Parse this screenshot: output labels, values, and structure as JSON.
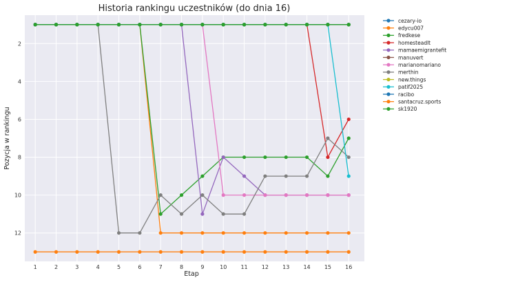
{
  "chart_data": {
    "type": "line",
    "title": "Historia rankingu uczestników (do dnia 16)",
    "xlabel": "Etap",
    "ylabel": "Pozycja w rankingu",
    "x": [
      1,
      2,
      3,
      4,
      5,
      6,
      7,
      8,
      9,
      10,
      11,
      12,
      13,
      14,
      15,
      16
    ],
    "xlim": [
      0.5,
      16.75
    ],
    "ylim": [
      13.5,
      0.5
    ],
    "y_inverted": true,
    "yticks": [
      2,
      4,
      6,
      8,
      10,
      12
    ],
    "grid": true,
    "legend_position": "outside-top-right",
    "series": [
      {
        "name": "cezary-io",
        "color": "#1f77b4",
        "values": [
          1,
          1,
          1,
          1,
          1,
          1,
          1,
          1,
          1,
          1,
          1,
          1,
          1,
          1,
          1,
          1
        ]
      },
      {
        "name": "edycu007",
        "color": "#ff7f0e",
        "values": [
          1,
          1,
          1,
          1,
          1,
          1,
          12,
          12,
          12,
          12,
          12,
          12,
          12,
          12,
          12,
          12
        ]
      },
      {
        "name": "fredkese",
        "color": "#2ca02c",
        "values": [
          1,
          1,
          1,
          1,
          1,
          1,
          11,
          10,
          9,
          8,
          8,
          8,
          8,
          8,
          9,
          7
        ]
      },
      {
        "name": "homesteadlt",
        "color": "#d62728",
        "values": [
          1,
          1,
          1,
          1,
          1,
          1,
          1,
          1,
          1,
          1,
          1,
          1,
          1,
          1,
          8,
          6
        ]
      },
      {
        "name": "mamaemigrantefit",
        "color": "#9467bd",
        "values": [
          1,
          1,
          1,
          1,
          1,
          1,
          1,
          1,
          11,
          8,
          9,
          10,
          10,
          10,
          10,
          10
        ]
      },
      {
        "name": "manuvert",
        "color": "#8c564b",
        "values": [
          1,
          1,
          1,
          1,
          1,
          1,
          1,
          1,
          1,
          1,
          1,
          1,
          1,
          1,
          1,
          1
        ]
      },
      {
        "name": "marianomariano",
        "color": "#e377c2",
        "values": [
          1,
          1,
          1,
          1,
          1,
          1,
          1,
          1,
          1,
          10,
          10,
          10,
          10,
          10,
          10,
          10
        ]
      },
      {
        "name": "merthin",
        "color": "#7f7f7f",
        "values": [
          1,
          1,
          1,
          1,
          12,
          12,
          10,
          11,
          10,
          11,
          11,
          9,
          9,
          9,
          7,
          8
        ]
      },
      {
        "name": "new.things",
        "color": "#bcbd22",
        "values": [
          1,
          1,
          1,
          1,
          1,
          1,
          1,
          1,
          1,
          1,
          1,
          1,
          1,
          1,
          1,
          1
        ]
      },
      {
        "name": "patif2025",
        "color": "#17becf",
        "values": [
          1,
          1,
          1,
          1,
          1,
          1,
          1,
          1,
          1,
          1,
          1,
          1,
          1,
          1,
          1,
          9
        ]
      },
      {
        "name": "racibo",
        "color": "#1f77b4",
        "values": [
          1,
          1,
          1,
          1,
          1,
          1,
          1,
          1,
          1,
          1,
          1,
          1,
          1,
          1,
          1,
          1
        ]
      },
      {
        "name": "santacruz.sports",
        "color": "#ff7f0e",
        "values": [
          13,
          13,
          13,
          13,
          13,
          13,
          13,
          13,
          13,
          13,
          13,
          13,
          13,
          13,
          13,
          13
        ]
      },
      {
        "name": "sk1920",
        "color": "#2ca02c",
        "values": [
          1,
          1,
          1,
          1,
          1,
          1,
          1,
          1,
          1,
          1,
          1,
          1,
          1,
          1,
          1,
          1
        ]
      }
    ]
  }
}
